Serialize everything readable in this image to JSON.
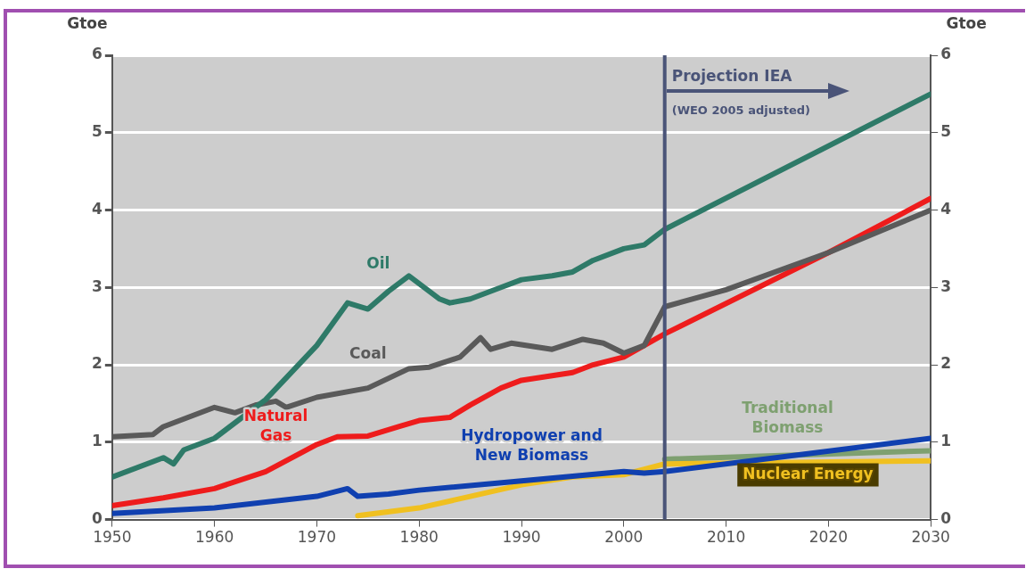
{
  "chart_data": {
    "type": "line",
    "ylabel": "Gtoe",
    "y2label": "Gtoe",
    "xlim": [
      1950,
      2030
    ],
    "xticks": [
      1950,
      1960,
      1970,
      1980,
      1990,
      2000,
      2010,
      2020,
      2030
    ],
    "ylim": [
      0,
      6
    ],
    "yticks": [
      0,
      1,
      2,
      3,
      4,
      5,
      6
    ],
    "y2lim": [
      0,
      6
    ],
    "y2ticks": [
      0,
      1,
      2,
      3,
      4,
      5,
      6
    ],
    "grid": "y",
    "legend": false,
    "marker": "none",
    "line_style": "solid",
    "ref_lines": [
      {
        "axis": "x",
        "value": 2004,
        "label": "Projection IEA",
        "color": "#4a5478"
      }
    ],
    "annotations": [
      "(WEO 2005 adjusted)"
    ],
    "series": [
      {
        "name": "Oil",
        "color": "#2e7a68",
        "x": [
          1950,
          1955,
          1956,
          1957,
          1960,
          1965,
          1970,
          1973,
          1975,
          1977,
          1979,
          1982,
          1983,
          1985,
          1988,
          1990,
          1993,
          1995,
          1997,
          2000,
          2002,
          2004,
          2030
        ],
        "values": [
          0.55,
          0.8,
          0.72,
          0.9,
          1.05,
          1.55,
          2.25,
          2.8,
          2.72,
          2.95,
          3.15,
          2.85,
          2.8,
          2.85,
          3.0,
          3.1,
          3.15,
          3.2,
          3.35,
          3.5,
          3.55,
          3.75,
          5.5
        ]
      },
      {
        "name": "Coal",
        "color": "#5a5a5a",
        "x": [
          1950,
          1954,
          1955,
          1960,
          1962,
          1964,
          1966,
          1967,
          1970,
          1975,
          1979,
          1981,
          1984,
          1986,
          1987,
          1989,
          1993,
          1996,
          1998,
          2000,
          2002,
          2004,
          2010,
          2020,
          2030
        ],
        "values": [
          1.07,
          1.1,
          1.2,
          1.45,
          1.38,
          1.48,
          1.53,
          1.45,
          1.58,
          1.7,
          1.95,
          1.97,
          2.1,
          2.35,
          2.2,
          2.28,
          2.2,
          2.33,
          2.28,
          2.15,
          2.25,
          2.75,
          2.97,
          3.45,
          4.0
        ]
      },
      {
        "name": "Natural Gas",
        "color": "#ee1c1c",
        "x": [
          1950,
          1955,
          1960,
          1965,
          1970,
          1972,
          1975,
          1978,
          1980,
          1983,
          1985,
          1988,
          1990,
          1995,
          1997,
          2000,
          2004,
          2020,
          2030
        ],
        "values": [
          0.18,
          0.28,
          0.4,
          0.62,
          0.97,
          1.07,
          1.08,
          1.2,
          1.28,
          1.32,
          1.48,
          1.7,
          1.8,
          1.9,
          2.0,
          2.1,
          2.4,
          3.45,
          4.15
        ]
      },
      {
        "name": "Hydropower and New Biomass",
        "color": "#1040b0",
        "x": [
          1950,
          1960,
          1970,
          1973,
          1974,
          1977,
          1980,
          1990,
          2000,
          2002,
          2004,
          2030
        ],
        "values": [
          0.08,
          0.15,
          0.3,
          0.4,
          0.3,
          0.33,
          0.38,
          0.5,
          0.62,
          0.6,
          0.62,
          1.05
        ]
      },
      {
        "name": "Nuclear Energy",
        "color": "#f0c020",
        "x": [
          1974,
          1980,
          1985,
          1990,
          1995,
          2000,
          2004,
          2030
        ],
        "values": [
          0.05,
          0.15,
          0.3,
          0.45,
          0.55,
          0.58,
          0.72,
          0.76
        ]
      },
      {
        "name": "Traditional Biomass",
        "color": "#7ea070",
        "x": [
          2004,
          2030
        ],
        "values": [
          0.78,
          0.89
        ]
      }
    ]
  }
}
